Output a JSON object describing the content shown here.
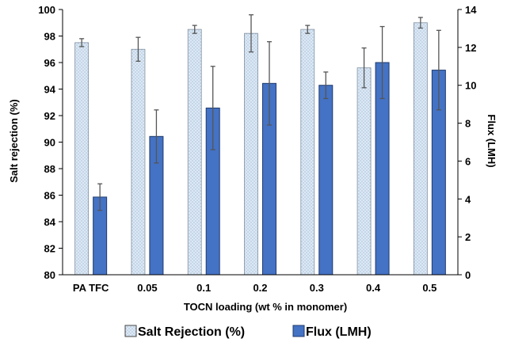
{
  "chart_data": {
    "type": "bar",
    "xlabel": "TOCN loading (wt % in monomer)",
    "ylabel": "Salt rejection (%)",
    "y2label": "Flux (LMH)",
    "categories": [
      "PA TFC",
      "0.05",
      "0.1",
      "0.2",
      "0.3",
      "0.4",
      "0.5"
    ],
    "ylim": [
      80,
      100
    ],
    "y_ticks": [
      80,
      82,
      84,
      86,
      88,
      90,
      92,
      94,
      96,
      98,
      100
    ],
    "y_tick_labels": [
      "80",
      "82",
      "84",
      "86",
      "88",
      "90",
      "92",
      "94",
      "96",
      "98",
      "100"
    ],
    "y2lim": [
      0,
      14
    ],
    "y2_ticks": [
      0,
      2,
      4,
      6,
      8,
      10,
      12,
      14
    ],
    "y2_tick_labels": [
      "0",
      "2",
      "4",
      "6",
      "8",
      "10",
      "12",
      "14"
    ],
    "legend_position": "bottom",
    "series": [
      {
        "name": "Salt Rejection (%)",
        "axis": "left",
        "color": "#dce9f5",
        "pattern": "dotted",
        "values": [
          97.5,
          97.0,
          98.5,
          98.2,
          98.5,
          95.6,
          99.0
        ],
        "errors": [
          0.3,
          0.9,
          0.3,
          1.4,
          0.3,
          1.5,
          0.4
        ]
      },
      {
        "name": "Flux (LMH)",
        "axis": "right",
        "color": "#4472c4",
        "values": [
          4.1,
          7.3,
          8.8,
          10.1,
          10.0,
          11.2,
          10.8
        ],
        "errors": [
          0.7,
          1.4,
          2.2,
          2.2,
          0.7,
          1.9,
          2.1
        ]
      }
    ]
  }
}
